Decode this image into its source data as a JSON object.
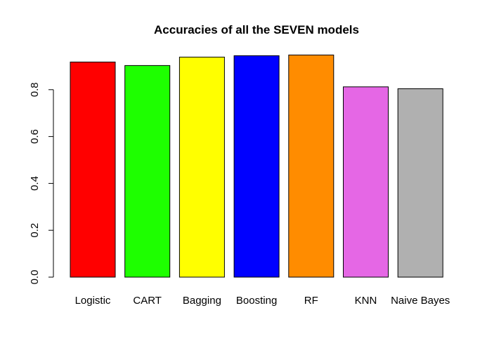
{
  "chart_data": {
    "type": "bar",
    "title": "Accuracies of all the SEVEN models",
    "xlabel": "",
    "ylabel": "",
    "categories": [
      "Logistic",
      "CART",
      "Bagging",
      "Boosting",
      "RF",
      "KNN",
      "Naive Bayes"
    ],
    "values": [
      0.918,
      0.903,
      0.939,
      0.945,
      0.948,
      0.812,
      0.804
    ],
    "colors": [
      "#ff0000",
      "#1eff00",
      "#ffff00",
      "#0000ff",
      "#ff8c00",
      "#e567e5",
      "#b0b0b0"
    ],
    "yticks": [
      "0.0",
      "0.2",
      "0.4",
      "0.6",
      "0.8"
    ],
    "ylim": [
      0,
      0.95
    ],
    "grid": false,
    "legend": "none"
  }
}
